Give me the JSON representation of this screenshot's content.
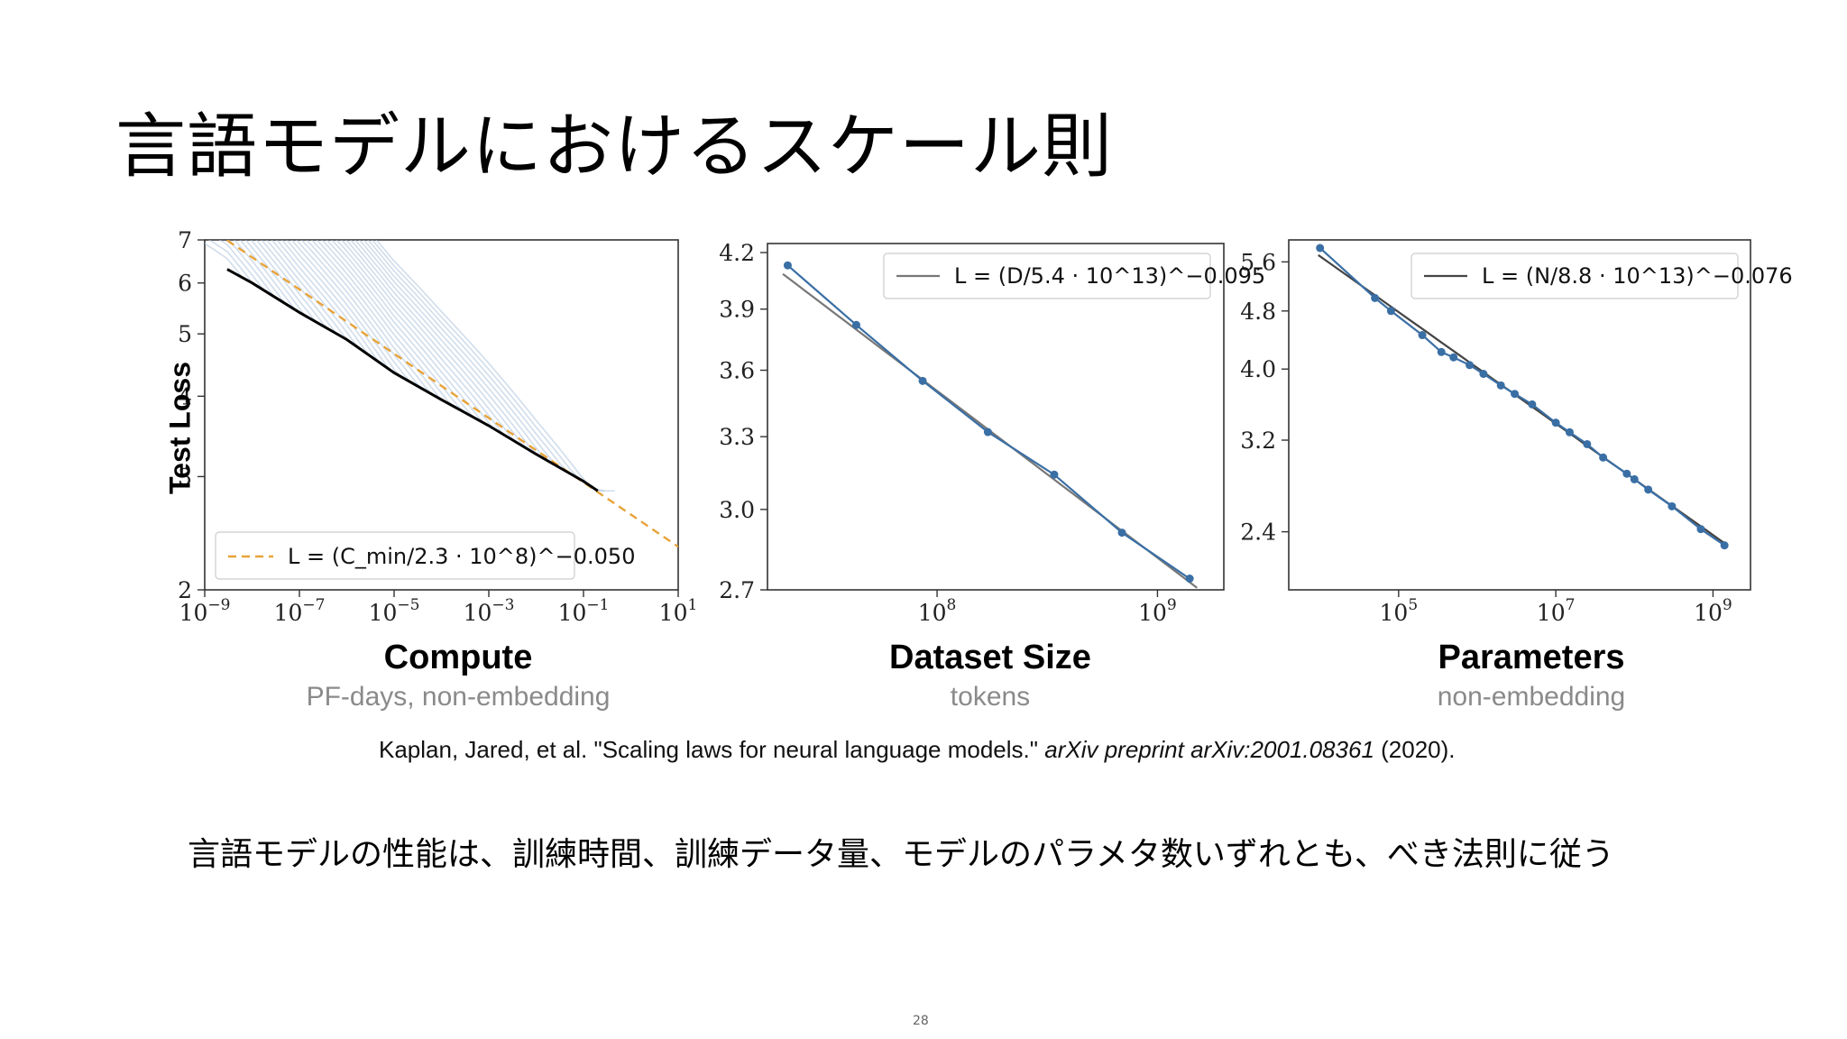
{
  "slide": {
    "title": "言語モデルにおけるスケール則",
    "citation_pre": "Kaplan, Jared, et al. \"Scaling laws for neural language models.\" ",
    "citation_journal": "arXiv preprint arXiv:2001.08361",
    "citation_post": " (2020).",
    "caption": "言語モデルの性能は、訓練時間、訓練データ量、モデルのパラメタ数いずれとも、べき法則に従う",
    "page_number": "28"
  },
  "chart_data": [
    {
      "type": "line",
      "xlabel": "Compute",
      "xsublabel": "PF-days, non-embedding",
      "ylabel": "Test Loss",
      "xscale": "log",
      "yscale": "log",
      "xlim": [
        1e-09,
        10
      ],
      "ylim": [
        2,
        7
      ],
      "yticks": [
        "2",
        "3",
        "4",
        "5",
        "6",
        "7"
      ],
      "xticks_exp": [
        "-9",
        "-7",
        "-5",
        "-3",
        "-1",
        "1"
      ],
      "legend_label": "L = (C_min/2.3 · 10^8)^−0.050",
      "legend_position": "lower-left",
      "fit": {
        "C0": 230000000.0,
        "alpha": 0.05
      },
      "frontier": {
        "x": [
          3e-09,
          1e-08,
          1e-07,
          1e-06,
          1e-05,
          0.0001,
          0.001,
          0.01,
          0.1,
          0.2
        ],
        "y": [
          6.3,
          6.0,
          5.4,
          4.9,
          4.35,
          3.95,
          3.6,
          3.25,
          2.95,
          2.85
        ]
      },
      "colors": {
        "fit": "#e8a33a",
        "frontier": "#000000",
        "runs": "#a9c1dc"
      }
    },
    {
      "type": "line",
      "xlabel": "Dataset Size",
      "xsublabel": "tokens",
      "xscale": "log",
      "yscale": "log",
      "xlim": [
        17000000.0,
        2000000000.0
      ],
      "ylim": [
        2.7,
        4.25
      ],
      "yticks": [
        "2.7",
        "3.0",
        "3.3",
        "3.6",
        "3.9",
        "4.2"
      ],
      "xticks_exp": [
        "8",
        "9"
      ],
      "legend_label": "L = (D/5.4 · 10^13)^−0.095",
      "legend_position": "upper-right",
      "fit": {
        "D0": 54000000000000.0,
        "alpha": 0.095
      },
      "points": {
        "x": [
          21000000.0,
          43000000.0,
          86000000.0,
          170000000.0,
          340000000.0,
          690000000.0,
          1400000000.0
        ],
        "y": [
          4.13,
          3.82,
          3.55,
          3.32,
          3.14,
          2.91,
          2.74
        ]
      },
      "colors": {
        "fit": "#777777",
        "points": "#3a6fa5"
      }
    },
    {
      "type": "line",
      "xlabel": "Parameters",
      "xsublabel": "non-embedding",
      "xscale": "log",
      "yscale": "log",
      "xlim": [
        4000.0,
        3000000000.0
      ],
      "ylim": [
        2.0,
        6.0
      ],
      "yticks": [
        "2.4",
        "3.2",
        "4.0",
        "4.8",
        "5.6"
      ],
      "xticks_exp": [
        "5",
        "7",
        "9"
      ],
      "legend_label": "L = (N/8.8 · 10^13)^−0.076",
      "legend_position": "upper-right",
      "fit": {
        "N0": 88000000000000.0,
        "alpha": 0.076
      },
      "points": {
        "x": [
          10000.0,
          50000.0,
          80000.0,
          200000.0,
          350000.0,
          500000.0,
          800000.0,
          1200000.0,
          2000000.0,
          3000000.0,
          5000000.0,
          10000000.0,
          15000000.0,
          25000000.0,
          40000000.0,
          80000000.0,
          100000000.0,
          150000000.0,
          300000000.0,
          700000000.0,
          1400000000.0
        ],
        "y": [
          5.85,
          5.0,
          4.8,
          4.45,
          4.22,
          4.15,
          4.05,
          3.94,
          3.8,
          3.7,
          3.58,
          3.38,
          3.28,
          3.16,
          3.03,
          2.88,
          2.83,
          2.74,
          2.6,
          2.42,
          2.3
        ]
      },
      "colors": {
        "fit": "#444444",
        "points": "#3a6fa5"
      }
    }
  ]
}
